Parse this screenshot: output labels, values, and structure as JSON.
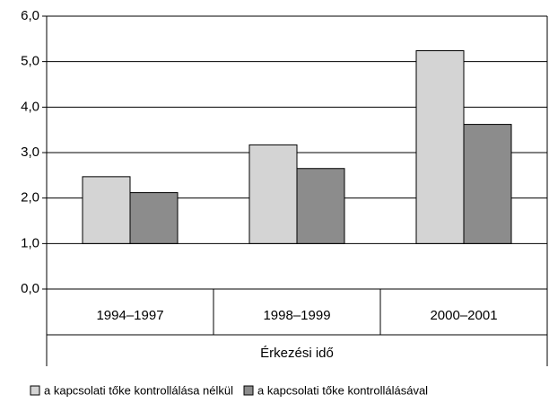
{
  "chart_data": {
    "type": "bar",
    "categories": [
      "1994–1997",
      "1998–1999",
      "2000–2001"
    ],
    "x_label": "Érkezési idő",
    "series": [
      {
        "name": "a kapcsolati tőke kontrollálása nélkül",
        "color": "#d4d4d4",
        "values": [
          2.47,
          3.17,
          5.24
        ]
      },
      {
        "name": "a kapcsolati tőke kontrollálásával",
        "color": "#8c8c8c",
        "values": [
          2.12,
          2.65,
          3.62
        ]
      }
    ],
    "ylim": [
      0,
      6
    ],
    "yticks": [
      {
        "value": 0,
        "label": "0,0"
      },
      {
        "value": 1,
        "label": "1,0"
      },
      {
        "value": 2,
        "label": "2,0"
      },
      {
        "value": 3,
        "label": "3,0"
      },
      {
        "value": 4,
        "label": "4,0"
      },
      {
        "value": 5,
        "label": "5,0"
      },
      {
        "value": 6,
        "label": "6,0"
      }
    ],
    "bar_base": 1,
    "grid": true,
    "legend": "bottom"
  }
}
